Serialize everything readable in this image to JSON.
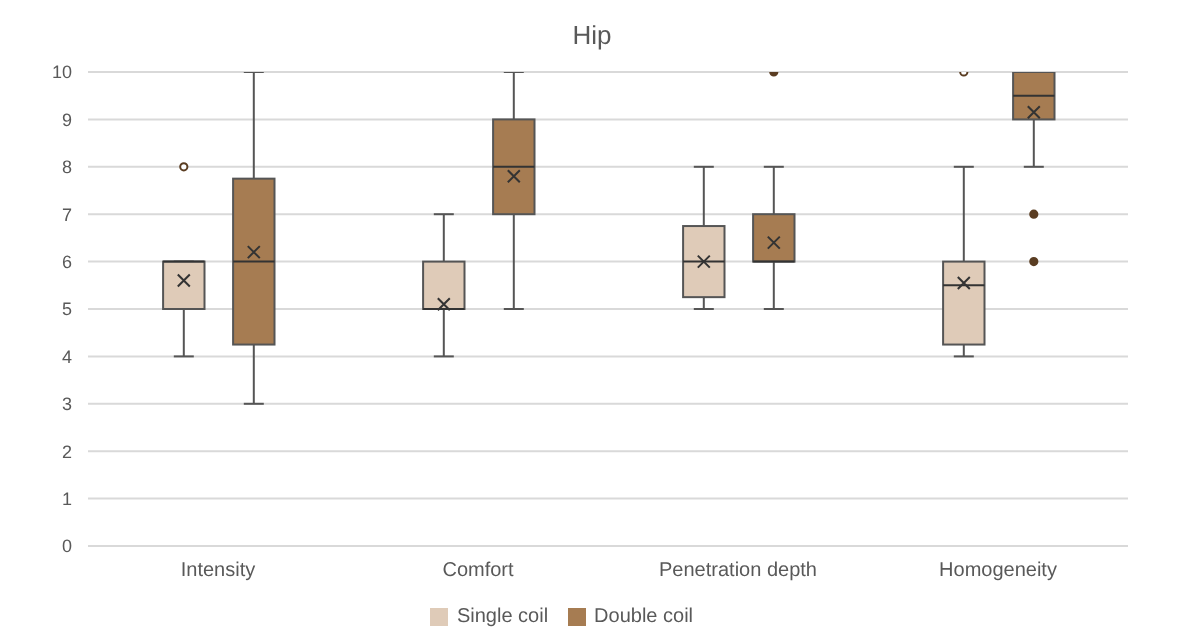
{
  "chart_data": {
    "type": "box",
    "title": "Hip",
    "categories": [
      "Intensity",
      "Comfort",
      "Penetration depth",
      "Homogeneity"
    ],
    "series": [
      {
        "name": "Single coil",
        "color": "#dfcbb8",
        "boxes": [
          {
            "low": 4,
            "q1": 5,
            "median": 6,
            "q3": 6,
            "high": 6,
            "mean": 5.6,
            "outliers": [
              8
            ]
          },
          {
            "low": 4,
            "q1": 5,
            "median": 5,
            "q3": 6,
            "high": 7,
            "mean": 5.1
          },
          {
            "low": 5,
            "q1": 5.25,
            "median": 6,
            "q3": 6.75,
            "high": 8,
            "mean": 6
          },
          {
            "low": 4,
            "q1": 4.25,
            "median": 5.5,
            "q3": 6,
            "high": 8,
            "mean": 5.55,
            "outliers": [
              10
            ]
          }
        ]
      },
      {
        "name": "Double coil",
        "color": "#a67c52",
        "boxes": [
          {
            "low": 3,
            "q1": 4.25,
            "median": 6,
            "q3": 7.75,
            "high": 10,
            "mean": 6.2
          },
          {
            "low": 5,
            "q1": 7,
            "median": 8,
            "q3": 9,
            "high": 10,
            "mean": 7.8
          },
          {
            "low": 5,
            "q1": 6,
            "median": 6,
            "q3": 7,
            "high": 8,
            "mean": 6.4,
            "outliers": [
              10
            ]
          },
          {
            "low": 8,
            "q1": 9,
            "median": 9.5,
            "q3": 10,
            "high": 10,
            "mean": 9.15,
            "outliers": [
              6,
              7
            ]
          }
        ]
      }
    ],
    "ylim": [
      0,
      10
    ],
    "yticks": [
      0,
      1,
      2,
      3,
      4,
      5,
      6,
      7,
      8,
      9,
      10
    ],
    "grid": "y",
    "legend": "bottom"
  }
}
